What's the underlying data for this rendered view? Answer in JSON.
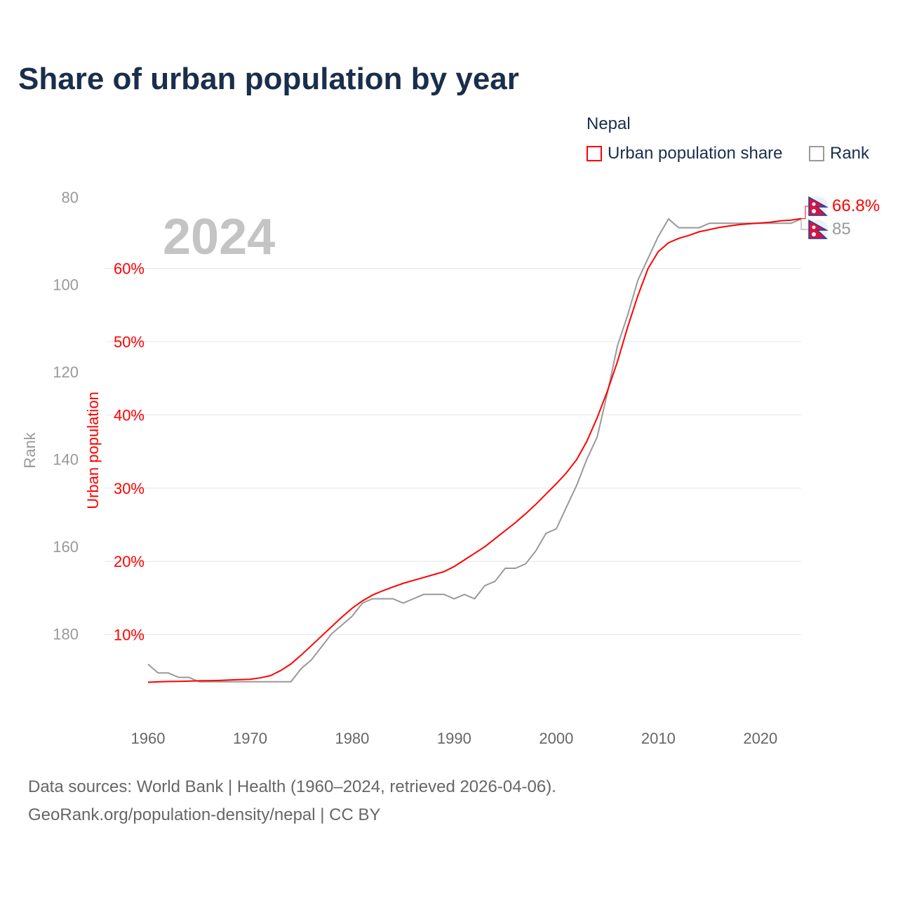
{
  "title": "Share of urban population by year",
  "legend": {
    "title": "Nepal",
    "items": [
      {
        "label": "Urban population share",
        "color": "#ff0000"
      },
      {
        "label": "Rank",
        "color": "#999999"
      }
    ]
  },
  "footer": {
    "line1": "Data sources: World Bank | Health (1960–2024, retrieved 2026-04-06).",
    "line2": "GeoRank.org/population-density/nepal | CC BY"
  },
  "chart_data": {
    "type": "line",
    "title": "Share of urban population by year",
    "year_label": "2024",
    "xlabel": "",
    "ylabel_left_outer": "Rank",
    "ylabel_left_inner": "Urban population",
    "x_ticks": [
      1960,
      1970,
      1980,
      1990,
      2000,
      2010,
      2020
    ],
    "urban_ticks": [
      "10%",
      "20%",
      "30%",
      "40%",
      "50%",
      "60%"
    ],
    "urban_tick_values": [
      10,
      20,
      30,
      40,
      50,
      60
    ],
    "rank_ticks": [
      "80",
      "100",
      "120",
      "140",
      "160",
      "180"
    ],
    "rank_tick_values": [
      80,
      100,
      120,
      140,
      160,
      180
    ],
    "urban_range": [
      0,
      70
    ],
    "rank_range": [
      80,
      200
    ],
    "x_range": [
      1960,
      2024
    ],
    "grid": true,
    "end_labels": {
      "urban": "66.8%",
      "rank": "85"
    },
    "x": [
      1960,
      1961,
      1962,
      1963,
      1964,
      1965,
      1966,
      1967,
      1968,
      1969,
      1970,
      1971,
      1972,
      1973,
      1974,
      1975,
      1976,
      1977,
      1978,
      1979,
      1980,
      1981,
      1982,
      1983,
      1984,
      1985,
      1986,
      1987,
      1988,
      1989,
      1990,
      1991,
      1992,
      1993,
      1994,
      1995,
      1996,
      1997,
      1998,
      1999,
      2000,
      2001,
      2002,
      2003,
      2004,
      2005,
      2006,
      2007,
      2008,
      2009,
      2010,
      2011,
      2012,
      2013,
      2014,
      2015,
      2016,
      2017,
      2018,
      2019,
      2020,
      2021,
      2022,
      2023,
      2024
    ],
    "series": [
      {
        "name": "Urban population share",
        "color": "#ff0000",
        "axis": "urban",
        "values": [
          3.5,
          3.55,
          3.6,
          3.62,
          3.65,
          3.7,
          3.72,
          3.75,
          3.8,
          3.85,
          3.9,
          4.1,
          4.4,
          5.1,
          6.0,
          7.2,
          8.5,
          9.8,
          11.1,
          12.4,
          13.6,
          14.6,
          15.4,
          16.0,
          16.5,
          17.0,
          17.4,
          17.8,
          18.2,
          18.6,
          19.3,
          20.2,
          21.1,
          22.0,
          23.1,
          24.2,
          25.3,
          26.5,
          27.8,
          29.2,
          30.6,
          32.1,
          33.9,
          36.4,
          39.6,
          43.2,
          47.3,
          52.0,
          56.3,
          60.0,
          62.3,
          63.5,
          64.1,
          64.5,
          65.0,
          65.3,
          65.6,
          65.8,
          66.0,
          66.1,
          66.2,
          66.3,
          66.5,
          66.6,
          66.8
        ]
      },
      {
        "name": "Rank",
        "color": "#999999",
        "axis": "rank",
        "values": [
          187,
          189,
          189,
          190,
          190,
          191,
          191,
          191,
          191,
          191,
          191,
          191,
          191,
          191,
          191,
          188,
          186,
          183,
          180,
          178,
          176,
          173,
          172,
          172,
          172,
          173,
          172,
          171,
          171,
          171,
          172,
          171,
          172,
          169,
          168,
          165,
          165,
          164,
          161,
          157,
          156,
          151,
          146,
          140,
          135,
          125,
          114,
          107,
          99,
          94,
          89,
          85,
          87,
          87,
          87,
          86,
          86,
          86,
          86,
          86,
          86,
          86,
          86,
          86,
          85
        ]
      }
    ]
  }
}
